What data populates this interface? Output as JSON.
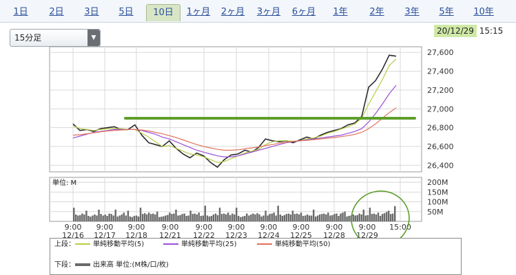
{
  "tabs": [
    {
      "label": "1日",
      "active": false
    },
    {
      "label": "2日",
      "active": false
    },
    {
      "label": "3日",
      "active": false
    },
    {
      "label": "5日",
      "active": false
    },
    {
      "label": "10日",
      "active": true
    },
    {
      "label": "1ヶ月",
      "active": false
    },
    {
      "label": "2ヶ月",
      "active": false
    },
    {
      "label": "3ヶ月",
      "active": false
    },
    {
      "label": "6ヶ月",
      "active": false
    },
    {
      "label": "1年",
      "active": false
    },
    {
      "label": "2年",
      "active": false
    },
    {
      "label": "3年",
      "active": false
    },
    {
      "label": "5年",
      "active": false
    },
    {
      "label": "10年",
      "active": false
    }
  ],
  "timeframe": {
    "selected": "15分足"
  },
  "timestamp": {
    "date": "20/12/29",
    "time": "15:15"
  },
  "colors": {
    "price": "#2a2a2a",
    "ma5": "#b8cc44",
    "ma25": "#9a4fd6",
    "ma50": "#e0715a",
    "volume": "#6a6a6a",
    "annotation": "#5e9e2c",
    "grid": "#d8d8d8"
  },
  "legend": {
    "upper_label": "上段：",
    "lower_label": "下段：",
    "ma5": "単純移動平均(5)",
    "ma25": "単純移動平均(25)",
    "ma50": "単純移動平均(50)",
    "volume": "出来高 単位:(M株/口/枚)"
  },
  "chart_data": [
    {
      "type": "line",
      "y_ticks": [
        26400,
        26600,
        26800,
        27000,
        27200,
        27400,
        27600
      ],
      "y_tick_labels": [
        "26,400",
        "26,600",
        "26,800",
        "27,000",
        "27,200",
        "27,400",
        "27,600"
      ],
      "ylim": [
        26330,
        27660
      ],
      "days": [
        "12/16",
        "12/17",
        "12/18",
        "12/21",
        "12/22",
        "12/23",
        "12/24",
        "12/25",
        "12/28",
        "12/29"
      ],
      "series": [
        {
          "key": "price",
          "values": [
            26840,
            26770,
            26780,
            26760,
            26790,
            26800,
            26810,
            26780,
            26780,
            26830,
            26720,
            26640,
            26620,
            26600,
            26660,
            26580,
            26520,
            26480,
            26530,
            26500,
            26430,
            26380,
            26460,
            26510,
            26520,
            26560,
            26540,
            26590,
            26680,
            26660,
            26650,
            26660,
            26640,
            26670,
            26700,
            26680,
            26720,
            26750,
            26770,
            26790,
            26830,
            26850,
            26920,
            27230,
            27300,
            27420,
            27570,
            27560
          ]
        },
        {
          "key": "ma5",
          "values": [
            26820,
            26790,
            26780,
            26770,
            26780,
            26790,
            26790,
            26790,
            26780,
            26780,
            26740,
            26700,
            26650,
            26600,
            26610,
            26580,
            26550,
            26520,
            26510,
            26490,
            26460,
            26430,
            26440,
            26470,
            26500,
            26530,
            26550,
            26570,
            26620,
            26650,
            26660,
            26660,
            26655,
            26660,
            26680,
            26690,
            26710,
            26740,
            26760,
            26785,
            26810,
            26840,
            26900,
            27050,
            27180,
            27310,
            27460,
            27530
          ]
        },
        {
          "key": "ma25",
          "values": [
            26690,
            26710,
            26730,
            26750,
            26760,
            26770,
            26780,
            26780,
            26780,
            26780,
            26770,
            26750,
            26730,
            26700,
            26680,
            26650,
            26620,
            26590,
            26560,
            26540,
            26520,
            26500,
            26490,
            26490,
            26500,
            26520,
            26540,
            26560,
            26580,
            26600,
            26620,
            26640,
            26650,
            26660,
            26670,
            26680,
            26690,
            26700,
            26710,
            26720,
            26740,
            26760,
            26790,
            26860,
            26950,
            27050,
            27160,
            27250
          ]
        },
        {
          "key": "ma50",
          "values": [
            26720,
            26725,
            26735,
            26745,
            26755,
            26765,
            26770,
            26775,
            26780,
            26780,
            26775,
            26765,
            26750,
            26735,
            26715,
            26695,
            26670,
            26645,
            26620,
            26600,
            26585,
            26570,
            26560,
            26560,
            26565,
            26575,
            26585,
            26595,
            26610,
            26620,
            26635,
            26645,
            26655,
            26660,
            26665,
            26672,
            26680,
            26688,
            26695,
            26705,
            26715,
            26730,
            26750,
            26790,
            26840,
            26900,
            26960,
            27010
          ]
        }
      ],
      "annotation": {
        "type": "hline",
        "y": 26900,
        "from_day": "12/17",
        "to_day": "12/29"
      }
    },
    {
      "type": "bar",
      "y_ticks": [
        50,
        100,
        150,
        200
      ],
      "y_tick_labels": [
        "50M",
        "100M",
        "150M",
        "200M"
      ],
      "ylim": [
        0,
        225
      ],
      "axis_unit": "単位: M",
      "x_tick_labels": [
        "9:00\n12/16",
        "9:00\n12/17",
        "9:00\n12/18",
        "9:00\n12/21",
        "9:00\n12/22",
        "9:00\n12/23",
        "9:00\n12/24",
        "9:00\n12/25",
        "9:00\n12/28",
        "9:00\n12/29",
        "15:00"
      ],
      "values": [
        70,
        35,
        30,
        32,
        40,
        35,
        55,
        28,
        24,
        30,
        35,
        30,
        60,
        38,
        30,
        35,
        28,
        40,
        38,
        30,
        60,
        25,
        30,
        35,
        45,
        30,
        55,
        25,
        22,
        28,
        30,
        25,
        70,
        38,
        42,
        36,
        45,
        38,
        40,
        35,
        50,
        22,
        24,
        26,
        30,
        33,
        45,
        38,
        40,
        60,
        30,
        32,
        38,
        40,
        28,
        30,
        55,
        38,
        40,
        35,
        45,
        28,
        30,
        80,
        30,
        25,
        28,
        35,
        40,
        32,
        70,
        38,
        40,
        36,
        45,
        32,
        40,
        35,
        70,
        28,
        22,
        25,
        28,
        40,
        30,
        35,
        40,
        35,
        42,
        36,
        25,
        30,
        55,
        30,
        38,
        40,
        45,
        30,
        80,
        35,
        28,
        32,
        38,
        40,
        35,
        55,
        38,
        40,
        36,
        45,
        28,
        30,
        35,
        30,
        30,
        60,
        25,
        30,
        35,
        38,
        40,
        35,
        45,
        30,
        32,
        38,
        40,
        28,
        40,
        45,
        50,
        25,
        28,
        30,
        36,
        30,
        32,
        40,
        35,
        60,
        30,
        32,
        70,
        38,
        40,
        35,
        45,
        28,
        38,
        42,
        48,
        55,
        38,
        40,
        78
      ],
      "annotation": {
        "type": "ellipse",
        "target": "12/29 volume"
      }
    }
  ]
}
